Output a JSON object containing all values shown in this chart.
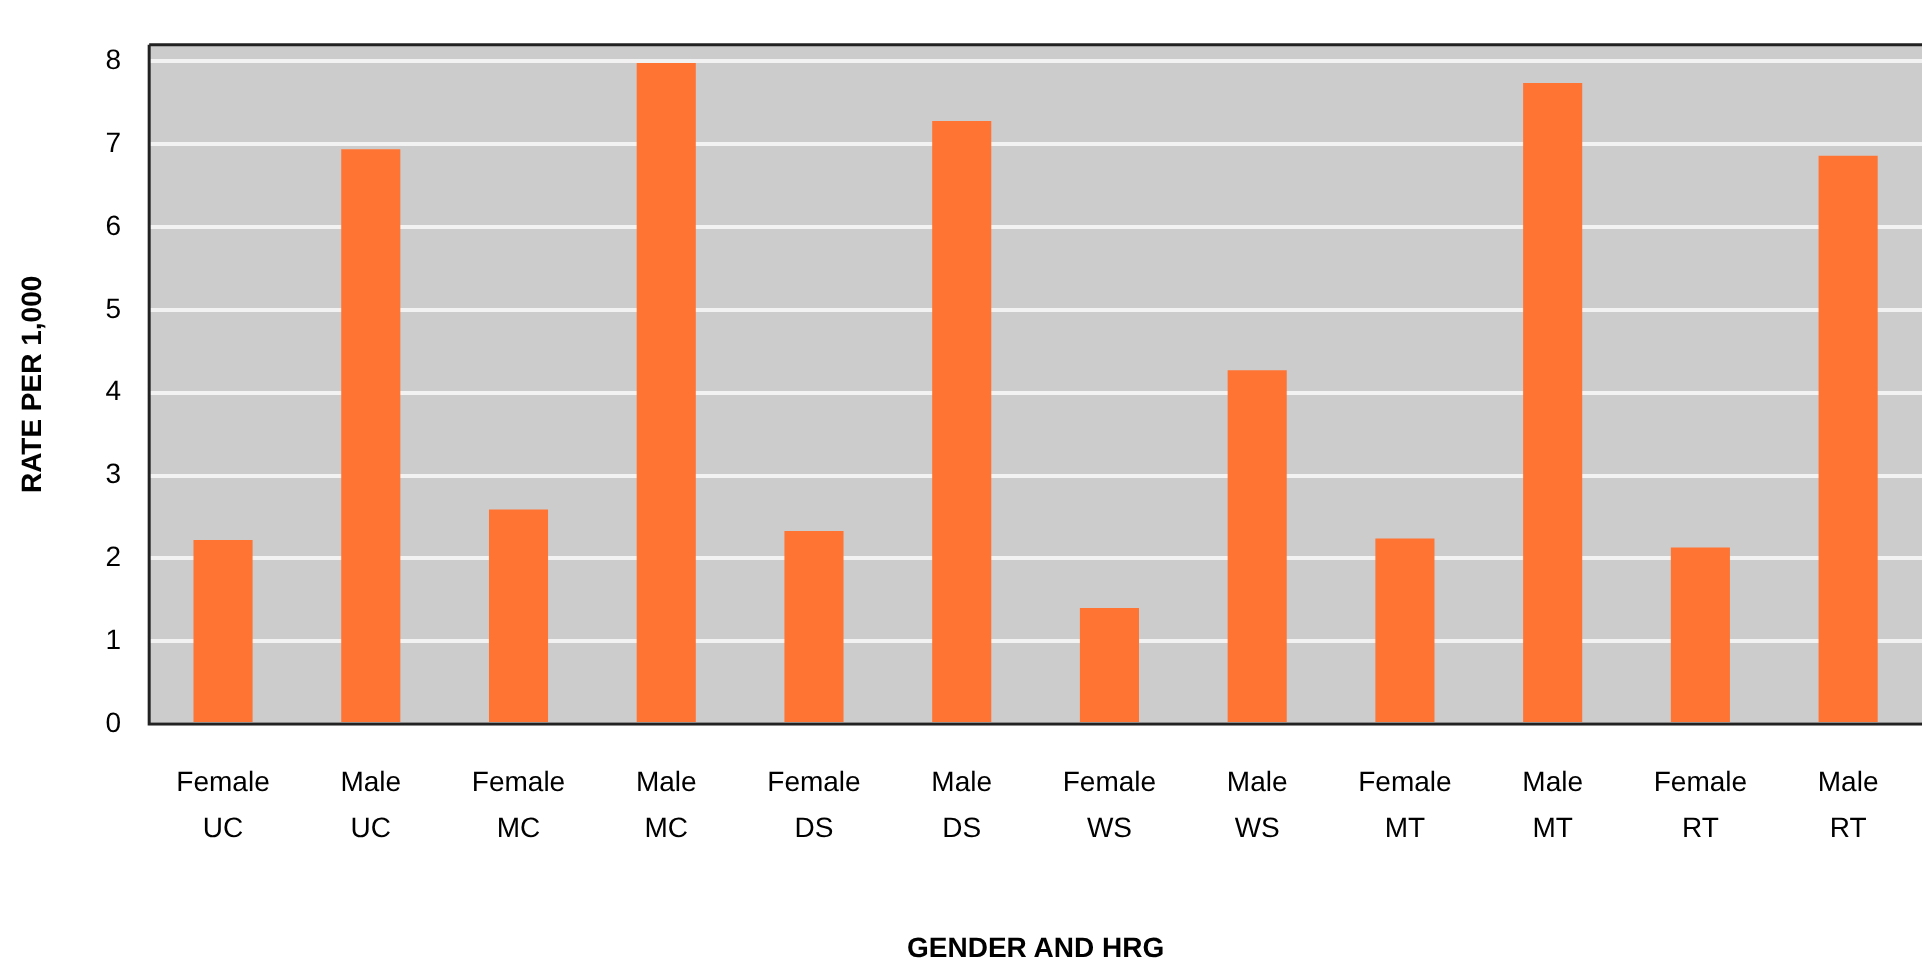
{
  "chart_data": {
    "type": "bar",
    "xlabel": "GENDER AND HRG",
    "ylabel": "RATE PER 1,000",
    "categories": [
      "Female\nUC",
      "Male\nUC",
      "Female\nMC",
      "Male\nMC",
      "Female\nDS",
      "Male\nDS",
      "Female\nWS",
      "Male\nWS",
      "Female\nMT",
      "Male\nMT",
      "Female\nRT",
      "Male\nRT"
    ],
    "values": [
      2.22,
      6.94,
      2.59,
      7.98,
      2.33,
      7.28,
      1.4,
      4.27,
      2.24,
      7.74,
      2.13,
      6.86
    ],
    "color": "#ff7433",
    "ylim": [
      0,
      8.2
    ],
    "yticks": [
      0,
      1,
      2,
      3,
      4,
      5,
      6,
      7,
      8
    ],
    "grid": "y",
    "legend": false
  }
}
